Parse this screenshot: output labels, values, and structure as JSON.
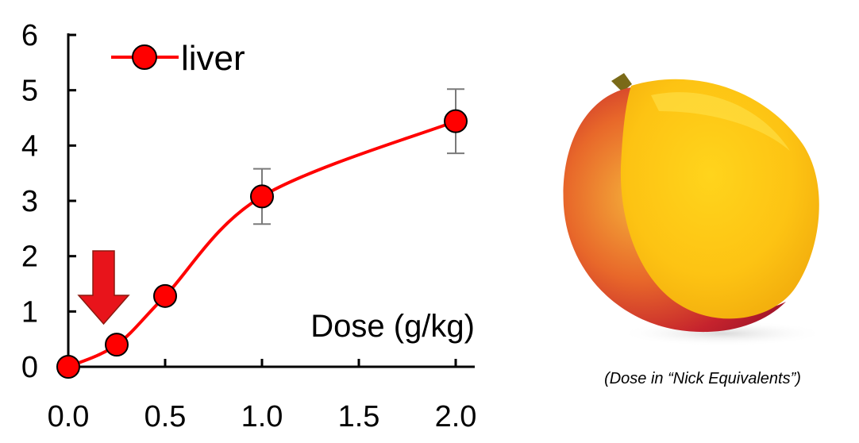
{
  "chart_data": {
    "type": "line",
    "x": [
      0.0,
      0.25,
      0.5,
      1.0,
      2.0
    ],
    "series": [
      {
        "name": "liver",
        "values": [
          0.0,
          0.4,
          1.28,
          3.08,
          4.44
        ],
        "error": [
          0,
          0,
          0,
          0.5,
          0.58
        ],
        "color": "#ff0000"
      }
    ],
    "x_ticks": [
      "0.0",
      "0.5",
      "1.0",
      "1.5",
      "2.0"
    ],
    "x_tick_values": [
      0.0,
      0.5,
      1.0,
      1.5,
      2.0
    ],
    "y_ticks": [
      "0",
      "1",
      "2",
      "3",
      "4",
      "5",
      "6"
    ],
    "y_tick_values": [
      0,
      1,
      2,
      3,
      4,
      5,
      6
    ],
    "xlim": [
      0,
      2.0
    ],
    "ylim": [
      0,
      6
    ],
    "title": "",
    "xlabel": "Dose (g/kg)",
    "ylabel": "",
    "legend": "top-left",
    "grid": false,
    "annotation": "arrow pointing to 0.25 g/kg point",
    "arrow_color": "#e8141b"
  },
  "caption": "(Dose in “Nick Equivalents”)",
  "image": "mango-half-icon"
}
